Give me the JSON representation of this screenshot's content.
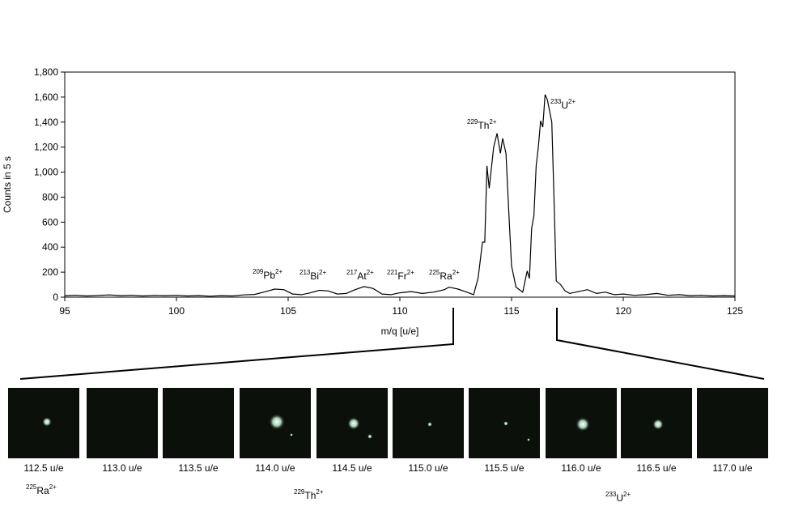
{
  "chart_data": {
    "type": "line",
    "x_label": "m/q [u/e]",
    "y_label": "Counts in 5 s",
    "xlim": [
      95,
      125
    ],
    "xticks": [
      95,
      100,
      105,
      110,
      115,
      120,
      125
    ],
    "ylim": [
      0,
      1800
    ],
    "yticks": [
      0,
      200,
      400,
      600,
      800,
      {
        "value": 1000,
        "label": "1,000"
      },
      {
        "value": 1200,
        "label": "1,200"
      },
      {
        "value": 1400,
        "label": "1,400"
      },
      {
        "value": 1600,
        "label": "1,600"
      },
      {
        "value": 1800,
        "label": "1,800"
      }
    ],
    "color": "#000000",
    "x": [
      95,
      95.5,
      96,
      96.5,
      97,
      97.5,
      98,
      98.5,
      99,
      99.5,
      100,
      100.5,
      101,
      101.5,
      102,
      102.5,
      103,
      103.5,
      104,
      104.4,
      104.8,
      105.2,
      105.6,
      106,
      106.4,
      106.8,
      107.2,
      107.6,
      108,
      108.4,
      108.8,
      109.2,
      109.6,
      110,
      110.5,
      111,
      111.5,
      112,
      112.2,
      112.6,
      113,
      113.3,
      113.5,
      113.7,
      113.8,
      113.9,
      114,
      114.2,
      114.35,
      114.5,
      114.6,
      114.75,
      114.9,
      115,
      115.2,
      115.5,
      115.7,
      115.8,
      115.9,
      116,
      116.1,
      116.2,
      116.3,
      116.4,
      116.5,
      116.6,
      116.8,
      116.9,
      117,
      117.2,
      117.4,
      117.6,
      118,
      118.4,
      118.8,
      119.2,
      119.6,
      120,
      120.5,
      121,
      121.5,
      122,
      122.5,
      123,
      123.5,
      124,
      124.5,
      125
    ],
    "values": [
      12,
      15,
      10,
      14,
      18,
      12,
      15,
      10,
      14,
      12,
      15,
      10,
      13,
      8,
      12,
      10,
      18,
      22,
      45,
      65,
      60,
      25,
      20,
      35,
      55,
      50,
      25,
      30,
      60,
      85,
      70,
      25,
      20,
      35,
      45,
      30,
      40,
      60,
      80,
      65,
      40,
      20,
      150,
      440,
      440,
      1050,
      870,
      1200,
      1310,
      1150,
      1270,
      1150,
      600,
      250,
      80,
      40,
      210,
      150,
      550,
      650,
      1050,
      1200,
      1410,
      1360,
      1620,
      1580,
      1400,
      800,
      130,
      100,
      50,
      30,
      45,
      60,
      30,
      40,
      20,
      25,
      15,
      20,
      30,
      15,
      20,
      12,
      15,
      10,
      12,
      10
    ],
    "annotations": [
      {
        "mass": "209",
        "element": "Pb",
        "charge": "2+"
      },
      {
        "mass": "213",
        "element": "Bi",
        "charge": "2+"
      },
      {
        "mass": "217",
        "element": "At",
        "charge": "2+"
      },
      {
        "mass": "221",
        "element": "Fr",
        "charge": "2+"
      },
      {
        "mass": "225",
        "element": "Ra",
        "charge": "2+"
      },
      {
        "mass": "229",
        "element": "Th",
        "charge": "2+"
      },
      {
        "mass": "233",
        "element": "U",
        "charge": "2+"
      }
    ]
  },
  "panels": {
    "labels": [
      "112.5 u/e",
      "113.0 u/e",
      "113.5 u/e",
      "114.0 u/e",
      "114.5 u/e",
      "115.0 u/e",
      "115.5 u/e",
      "116.0 u/e",
      "116.5 u/e",
      "117.0 u/e"
    ],
    "groups": [
      {
        "mass": "225",
        "element": "Ra",
        "charge": "2+"
      },
      {
        "mass": "229",
        "element": "Th",
        "charge": "2+"
      },
      {
        "mass": "233",
        "element": "U",
        "charge": "2+"
      }
    ]
  }
}
